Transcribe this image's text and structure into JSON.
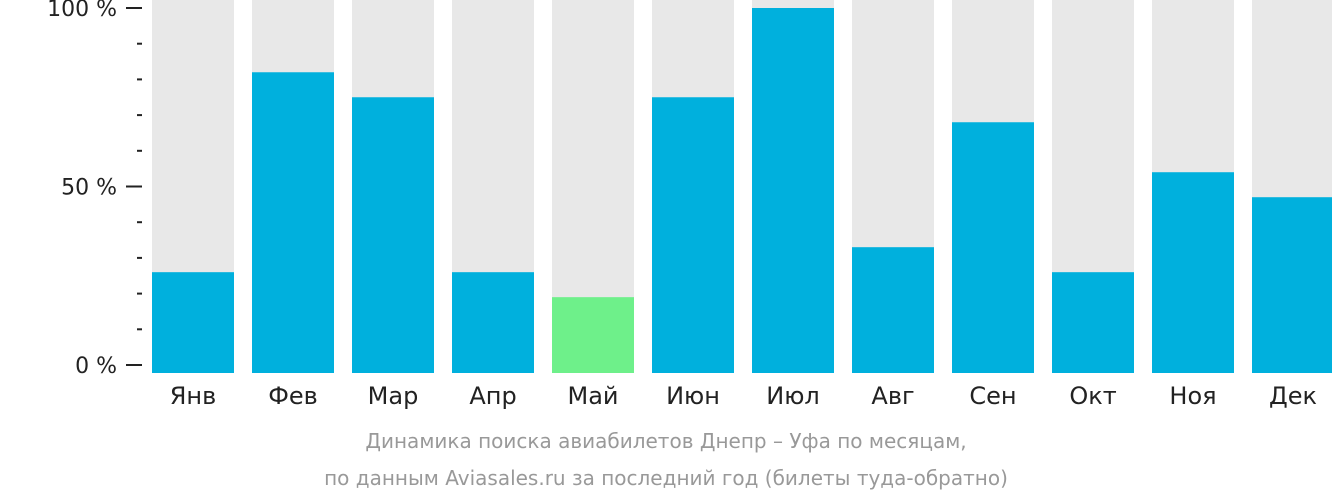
{
  "chart_data": {
    "type": "bar",
    "categories": [
      "Янв",
      "Фев",
      "Мар",
      "Апр",
      "Май",
      "Июн",
      "Июл",
      "Авг",
      "Сен",
      "Окт",
      "Ноя",
      "Дек"
    ],
    "values": [
      26,
      82,
      75,
      26,
      19,
      75,
      100,
      33,
      68,
      26,
      54,
      47
    ],
    "highlight_index": 4,
    "ylim": [
      0,
      100
    ],
    "yticks": [
      {
        "value": 0,
        "label": "0 %"
      },
      {
        "value": 50,
        "label": "50 %"
      },
      {
        "value": 100,
        "label": "100 %"
      }
    ],
    "minor_tick_step": 10,
    "colors": {
      "bar": "#00b0dd",
      "highlight": "#6ef08a",
      "track": "#e8e8e8",
      "axis": "#222222"
    },
    "caption_line1": "Динамика поиска авиабилетов Днепр – Уфа по месяцам,",
    "caption_line2": "по данным Aviasales.ru за последний год (билеты туда-обратно)"
  }
}
